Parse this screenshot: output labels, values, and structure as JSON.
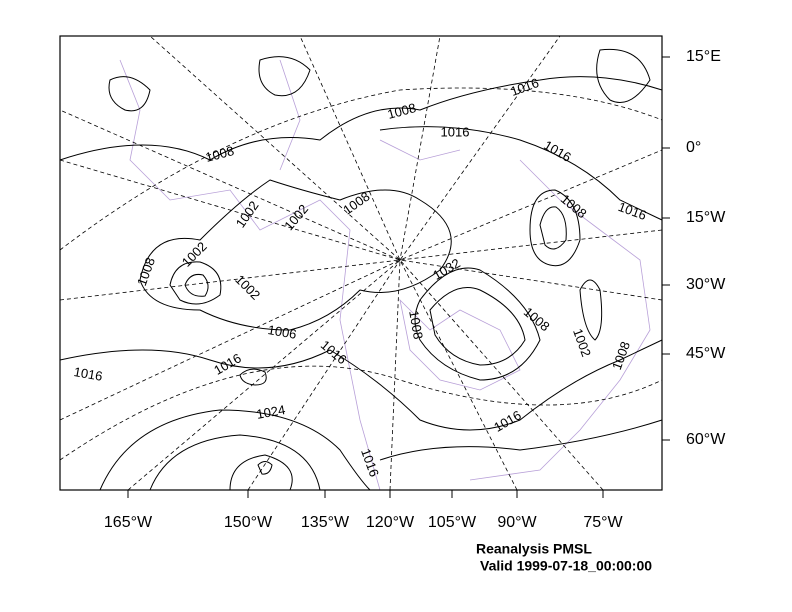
{
  "map": {
    "lat_labels": [
      "15°E",
      "0°",
      "15°W",
      "30°W",
      "45°W",
      "60°W"
    ],
    "lon_labels": [
      "165°W",
      "150°W",
      "135°W",
      "120°W",
      "105°W",
      "90°W",
      "75°W"
    ],
    "contour_labels": [
      "1016",
      "1008",
      "1016",
      "1008",
      "1016",
      "1016",
      "1008",
      "1002",
      "1002",
      "1008",
      "1002",
      "1008",
      "1002",
      "1032",
      "1006",
      "1008",
      "1008",
      "1002",
      "1008",
      "1016",
      "1016",
      "1016",
      "1024",
      "1016",
      "1016"
    ]
  },
  "caption": {
    "title": "Reanalysis PMSL",
    "valid": "Valid 1999-07-18_00:00:00"
  }
}
